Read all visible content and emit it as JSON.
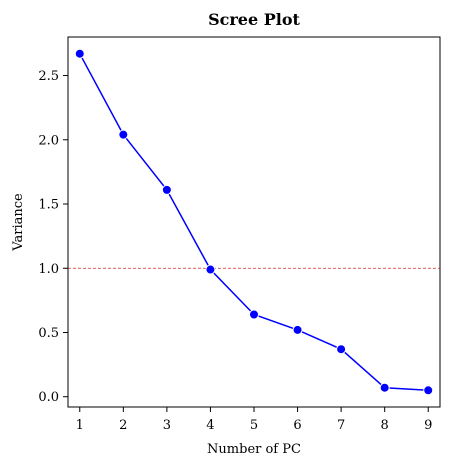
{
  "chart_data": {
    "type": "line",
    "title": "Scree Plot",
    "xlabel": "Number of PC",
    "ylabel": "Variance",
    "x": [
      1,
      2,
      3,
      4,
      5,
      6,
      7,
      8,
      9
    ],
    "series": [
      {
        "values": [
          2.67,
          2.04,
          1.61,
          0.99,
          0.64,
          0.52,
          0.37,
          0.07,
          0.05
        ]
      }
    ],
    "reference_line": {
      "y": 1.0,
      "style": "dashed",
      "color": "#d62728"
    },
    "xlim": [
      0.73,
      9.27
    ],
    "ylim": [
      -0.08,
      2.8
    ],
    "xticks": [
      1,
      2,
      3,
      4,
      5,
      6,
      7,
      8,
      9
    ],
    "yticks": [
      0.0,
      0.5,
      1.0,
      1.5,
      2.0,
      2.5
    ],
    "ytick_labels": [
      "0.0",
      "0.5",
      "1.0",
      "1.5",
      "2.0",
      "2.5"
    ],
    "grid": false,
    "legend": "none",
    "colors": {
      "line": "#0000ff",
      "marker": "#0000ff",
      "reference": "#d62728"
    }
  }
}
